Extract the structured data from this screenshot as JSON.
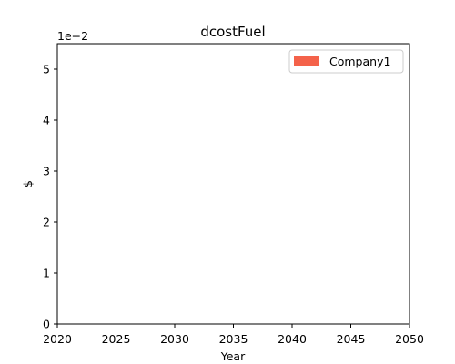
{
  "chart_data": {
    "type": "area",
    "title": "dcostFuel",
    "xlabel": "Year",
    "ylabel": "$",
    "y_offset_label": "1e−2",
    "xlim": [
      2020,
      2050
    ],
    "ylim": [
      0,
      0.055
    ],
    "x_ticks": [
      2020,
      2025,
      2030,
      2035,
      2040,
      2045,
      2050
    ],
    "x_tick_labels": [
      "2020",
      "2025",
      "2030",
      "2035",
      "2040",
      "2045",
      "2050"
    ],
    "y_ticks": [
      0,
      0.01,
      0.02,
      0.03,
      0.04,
      0.05
    ],
    "y_tick_labels": [
      "0",
      "1",
      "2",
      "3",
      "4",
      "5"
    ],
    "grid": false,
    "legend_position": "top-right",
    "series": [
      {
        "name": "Company1",
        "color": "#f4624a",
        "x": [
          2020,
          2025,
          2030,
          2035,
          2040,
          2045,
          2050
        ],
        "values": [
          0,
          0,
          0,
          0,
          0,
          0,
          0
        ]
      }
    ]
  }
}
